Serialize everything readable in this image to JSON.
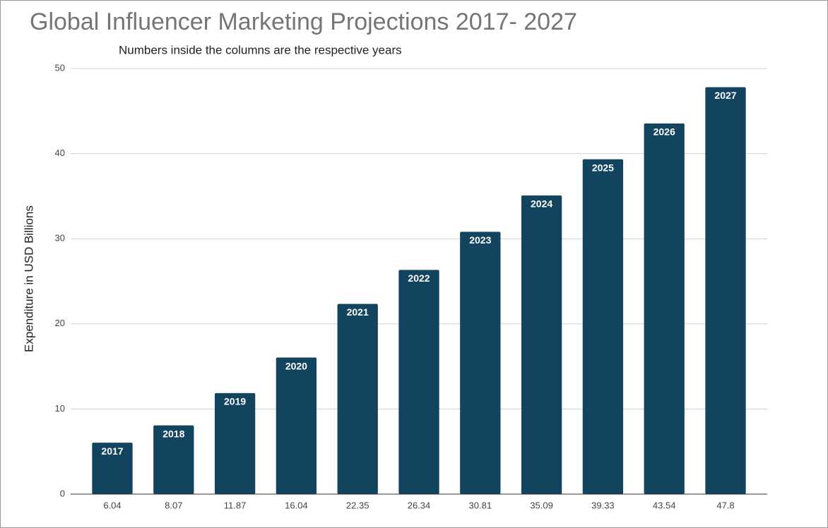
{
  "chart_data": {
    "type": "bar",
    "title": "Global Influencer Marketing Projections 2017- 2027",
    "subtitle": "Numbers inside the columns are the respective years",
    "y_axis_label": "Expenditure in USD Billions",
    "categories": [
      "6.04",
      "8.07",
      "11.87",
      "16.04",
      "22.35",
      "26.34",
      "30.81",
      "35.09",
      "39.33",
      "43.54",
      "47.8"
    ],
    "values": [
      6.04,
      8.07,
      11.87,
      16.04,
      22.35,
      26.34,
      30.81,
      35.09,
      39.33,
      43.54,
      47.8
    ],
    "bar_labels": [
      "2017",
      "2018",
      "2019",
      "2020",
      "2021",
      "2022",
      "2023",
      "2024",
      "2025",
      "2026",
      "2027"
    ],
    "color": "#12435f",
    "ylim": [
      0,
      50
    ],
    "yticks": [
      0,
      10,
      20,
      30,
      40,
      50
    ],
    "grid": true
  }
}
